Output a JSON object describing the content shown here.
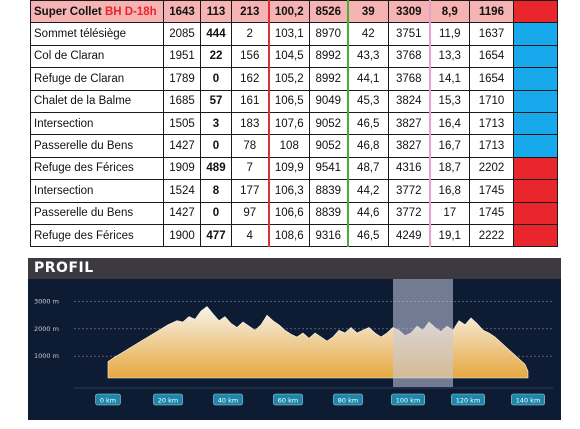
{
  "table": {
    "rows": [
      {
        "name": "Super Collet",
        "badge": "BH D-18h",
        "c1": "1643",
        "c2": "113",
        "c3": "213",
        "c4": "100,2",
        "c5": "8526",
        "c6": "39",
        "c7": "3309",
        "c8": "8,9",
        "c9": "1196",
        "color": "#e8262b",
        "header": true
      },
      {
        "name": "Sommet télésiège",
        "badge": "",
        "c1": "2085",
        "c2": "444",
        "c3": "2",
        "c4": "103,1",
        "c5": "8970",
        "c6": "42",
        "c7": "3751",
        "c8": "11,9",
        "c9": "1637",
        "color": "#17a9ec"
      },
      {
        "name": "Col de Claran",
        "badge": "",
        "c1": "1951",
        "c2": "22",
        "c3": "156",
        "c4": "104,5",
        "c5": "8992",
        "c6": "43,3",
        "c7": "3768",
        "c8": "13,3",
        "c9": "1654",
        "color": "#17a9ec"
      },
      {
        "name": "Refuge de Claran",
        "badge": "",
        "c1": "1789",
        "c2": "0",
        "c3": "162",
        "c4": "105,2",
        "c5": "8992",
        "c6": "44,1",
        "c7": "3768",
        "c8": "14,1",
        "c9": "1654",
        "color": "#17a9ec"
      },
      {
        "name": "Chalet de la Balme",
        "badge": "",
        "c1": "1685",
        "c2": "57",
        "c3": "161",
        "c4": "106,5",
        "c5": "9049",
        "c6": "45,3",
        "c7": "3824",
        "c8": "15,3",
        "c9": "1710",
        "color": "#17a9ec"
      },
      {
        "name": "Intersection",
        "badge": "",
        "c1": "1505",
        "c2": "3",
        "c3": "183",
        "c4": "107,6",
        "c5": "9052",
        "c6": "46,5",
        "c7": "3827",
        "c8": "16,4",
        "c9": "1713",
        "color": "#17a9ec"
      },
      {
        "name": "Passerelle du Bens",
        "badge": "",
        "c1": "1427",
        "c2": "0",
        "c3": "78",
        "c4": "108",
        "c5": "9052",
        "c6": "46,8",
        "c7": "3827",
        "c8": "16,7",
        "c9": "1713",
        "color": "#17a9ec"
      },
      {
        "name": "Refuge des Férices",
        "badge": "",
        "c1": "1909",
        "c2": "489",
        "c3": "7",
        "c4": "109,9",
        "c5": "9541",
        "c6": "48,7",
        "c7": "4316",
        "c8": "18,7",
        "c9": "2202",
        "color": "#e8262b"
      },
      {
        "name": "Intersection",
        "badge": "",
        "c1": "1524",
        "c2": "8",
        "c3": "177",
        "c4": "106,3",
        "c5": "8839",
        "c6": "44,2",
        "c7": "3772",
        "c8": "16,8",
        "c9": "1745",
        "color": "#e8262b"
      },
      {
        "name": "Passerelle du Bens",
        "badge": "",
        "c1": "1427",
        "c2": "0",
        "c3": "97",
        "c4": "106,6",
        "c5": "8839",
        "c6": "44,6",
        "c7": "3772",
        "c8": "17",
        "c9": "1745",
        "color": "#e8262b"
      },
      {
        "name": "Refuge des Férices",
        "badge": "",
        "c1": "1900",
        "c2": "477",
        "c3": "4",
        "c4": "108,6",
        "c5": "9316",
        "c6": "46,5",
        "c7": "4249",
        "c8": "19,1",
        "c9": "2222",
        "color": "#e8262b"
      }
    ]
  },
  "profile": {
    "title": "PROFIL",
    "y_ticks": [
      "3000 m",
      "2000 m",
      "1000 m"
    ],
    "x_ticks": [
      "0 km",
      "20 km",
      "40 km",
      "60 km",
      "80 km",
      "100 km",
      "120 km",
      "140 km"
    ],
    "colors": {
      "fill_top": "#f7f3ea",
      "fill_bottom": "#e6a840",
      "tick_fill": "#1e86a8",
      "highlight": "#c7cbe0"
    },
    "highlight_km": [
      95,
      115
    ]
  }
}
